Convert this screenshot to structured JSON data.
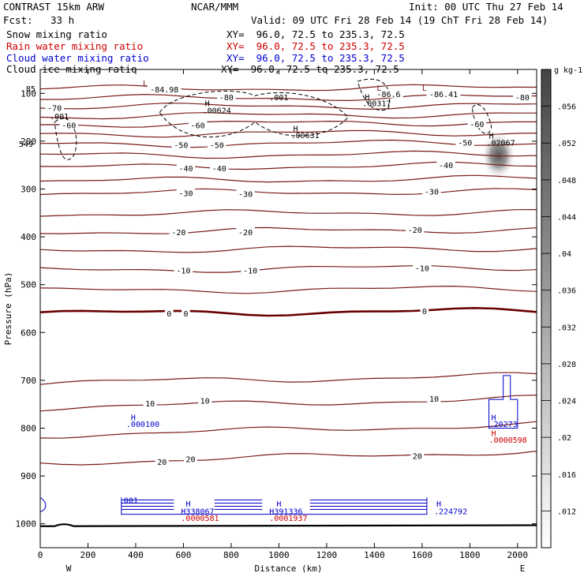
{
  "header": {
    "model": "CONTRAST 15km ARW",
    "org": "NCAR/MMM",
    "init": "Init: 00 UTC Thu 27 Feb 14",
    "fcst_label": "Fcst:",
    "fcst_value": "33 h",
    "valid": "Valid: 09 UTC Fri 28 Feb 14 (19 ChT Fri 28 Feb 14)"
  },
  "legend": [
    {
      "name": "Snow mixing ratio",
      "xy": "XY=  96.0, 72.5 to 235.3, 72.5",
      "color": "#000000"
    },
    {
      "name": "Rain water mixing ratio",
      "xy": "XY=  96.0, 72.5 to 235.3, 72.5",
      "color": "#cc0000"
    },
    {
      "name": "Cloud water mixing ratio",
      "xy": "XY=  96.0, 72.5 to 235.3, 72.5",
      "color": "#0000cc"
    },
    {
      "name": "Cloud ice mixing ratio",
      "xy": "XY=  96.0, 72.5 to 235.3, 72.5",
      "color": "#000000"
    }
  ],
  "chart_data": {
    "type": "contour",
    "xlabel": "Distance (km)",
    "ylabel": "Pressure (hPa)",
    "xlim": [
      0,
      2080
    ],
    "ylim": [
      1050,
      50
    ],
    "x_ticks": [
      0,
      200,
      400,
      600,
      800,
      1000,
      1200,
      1400,
      1600,
      1800,
      2000
    ],
    "y_ticks": [
      100,
      200,
      300,
      400,
      500,
      600,
      700,
      800,
      900,
      1000
    ],
    "x_end_labels": {
      "left": "W",
      "right": "E"
    },
    "temperature_contours": {
      "color": "#7a1a1a",
      "zero_color": "#6a0000",
      "interval": 5,
      "lines": [
        {
          "value": 20,
          "p_left": 873,
          "p_right": 848
        },
        {
          "value": 15,
          "p_left": 815,
          "p_right": 792
        },
        {
          "value": 10,
          "p_left": 757,
          "p_right": 738
        },
        {
          "value": 5,
          "p_left": 705,
          "p_right": 690
        },
        {
          "value": 0,
          "p_left": 560,
          "p_right": 555
        },
        {
          "value": -5,
          "p_left": 513,
          "p_right": 508
        },
        {
          "value": -10,
          "p_left": 470,
          "p_right": 463
        },
        {
          "value": -15,
          "p_left": 428,
          "p_right": 423
        },
        {
          "value": -20,
          "p_left": 390,
          "p_right": 384
        },
        {
          "value": -25,
          "p_left": 352,
          "p_right": 348
        },
        {
          "value": -30,
          "p_left": 308,
          "p_right": 305
        },
        {
          "value": -35,
          "p_left": 283,
          "p_right": 278
        },
        {
          "value": -40,
          "p_left": 255,
          "p_right": 250
        },
        {
          "value": -45,
          "p_left": 230,
          "p_right": 227
        },
        {
          "value": -50,
          "p_left": 207,
          "p_right": 203
        },
        {
          "value": -55,
          "p_left": 185,
          "p_right": 182
        },
        {
          "value": -60,
          "p_left": 165,
          "p_right": 160
        },
        {
          "value": -65,
          "p_left": 148,
          "p_right": 143
        },
        {
          "value": -70,
          "p_left": 128,
          "p_right": 125
        },
        {
          "value": -75,
          "p_left": 110,
          "p_right": 108
        },
        {
          "value": -80,
          "p_left": 90,
          "p_right": 88
        }
      ],
      "labels": [
        {
          "text": "-84.98",
          "x": 520,
          "p": 91
        },
        {
          "text": "-86.6",
          "x": 1460,
          "p": 101
        },
        {
          "text": "-86.41",
          "x": 1690,
          "p": 101
        },
        {
          "text": "-80",
          "x": 780,
          "p": 108
        },
        {
          "text": "-80",
          "x": 2020,
          "p": 108
        },
        {
          "text": "-70",
          "x": 60,
          "p": 130
        },
        {
          "text": "-60",
          "x": 120,
          "p": 166
        },
        {
          "text": "-60",
          "x": 660,
          "p": 166
        },
        {
          "text": "-60",
          "x": 1830,
          "p": 164
        },
        {
          "text": "-50",
          "x": 590,
          "p": 208
        },
        {
          "text": "-50",
          "x": 740,
          "p": 208
        },
        {
          "text": "-50",
          "x": 1780,
          "p": 203
        },
        {
          "text": "-40",
          "x": 610,
          "p": 256
        },
        {
          "text": "-40",
          "x": 750,
          "p": 256
        },
        {
          "text": "-40",
          "x": 1700,
          "p": 250
        },
        {
          "text": "-30",
          "x": 610,
          "p": 308
        },
        {
          "text": "-30",
          "x": 860,
          "p": 310
        },
        {
          "text": "-30",
          "x": 1640,
          "p": 305
        },
        {
          "text": "-20",
          "x": 580,
          "p": 390
        },
        {
          "text": "-20",
          "x": 860,
          "p": 390
        },
        {
          "text": "-20",
          "x": 1570,
          "p": 385
        },
        {
          "text": "-10",
          "x": 600,
          "p": 470
        },
        {
          "text": "-10",
          "x": 880,
          "p": 470
        },
        {
          "text": "-10",
          "x": 1600,
          "p": 465
        },
        {
          "text": "0",
          "x": 540,
          "p": 560
        },
        {
          "text": "0",
          "x": 610,
          "p": 560
        },
        {
          "text": "0",
          "x": 1610,
          "p": 555
        },
        {
          "text": "10",
          "x": 460,
          "p": 748
        },
        {
          "text": "10",
          "x": 690,
          "p": 742
        },
        {
          "text": "10",
          "x": 1650,
          "p": 738
        },
        {
          "text": "20",
          "x": 510,
          "p": 870
        },
        {
          "text": "20",
          "x": 630,
          "p": 864
        },
        {
          "text": "20",
          "x": 1580,
          "p": 858
        },
        {
          "text": "549",
          "x": -60,
          "p": 205
        },
        {
          "text": "85",
          "x": -40,
          "p": 90
        }
      ]
    },
    "annotations": [
      {
        "text": "L",
        "x": 430,
        "p": 78,
        "color": "#7a1a1a"
      },
      {
        "text": "L",
        "x": 1410,
        "p": 88,
        "color": "#7a1a1a"
      },
      {
        "text": "L",
        "x": 1600,
        "p": 88,
        "color": "#7a1a1a"
      },
      {
        "text": "H",
        "x": 690,
        "p": 120,
        "color": "#000000"
      },
      {
        "text": ".00624",
        "x": 680,
        "p": 135,
        "color": "#000000"
      },
      {
        "text": ".001",
        "x": 960,
        "p": 108,
        "color": "#000000"
      },
      {
        "text": "H",
        "x": 1360,
        "p": 107,
        "color": "#000000"
      },
      {
        "text": ".00317",
        "x": 1350,
        "p": 120,
        "color": "#000000"
      },
      {
        "text": "H",
        "x": 1060,
        "p": 173,
        "color": "#000000"
      },
      {
        "text": ".00631",
        "x": 1050,
        "p": 187,
        "color": "#000000"
      },
      {
        "text": ".001",
        "x": 40,
        "p": 147,
        "color": "#000000"
      },
      {
        "text": "H",
        "x": 1880,
        "p": 188,
        "color": "#000000"
      },
      {
        "text": ".02067",
        "x": 1870,
        "p": 203,
        "color": "#000000"
      },
      {
        "text": "H",
        "x": 380,
        "p": 777,
        "color": "#0000cc"
      },
      {
        "text": ".000100",
        "x": 360,
        "p": 791,
        "color": "#0000cc"
      },
      {
        "text": "H",
        "x": 1890,
        "p": 777,
        "color": "#0000cc"
      },
      {
        "text": ".20273",
        "x": 1880,
        "p": 791,
        "color": "#0000cc"
      },
      {
        "text": "H",
        "x": 1890,
        "p": 810,
        "color": "#cc0000"
      },
      {
        "text": ".0000598",
        "x": 1880,
        "p": 824,
        "color": "#cc0000"
      },
      {
        "text": ".001",
        "x": 330,
        "p": 950,
        "color": "#0000cc"
      },
      {
        "text": "H",
        "x": 610,
        "p": 958,
        "color": "#0000cc"
      },
      {
        "text": "H338067",
        "x": 590,
        "p": 973,
        "color": "#0000cc"
      },
      {
        "text": ".0000581",
        "x": 590,
        "p": 987,
        "color": "#cc0000"
      },
      {
        "text": "H",
        "x": 990,
        "p": 958,
        "color": "#0000cc"
      },
      {
        "text": "H391336",
        "x": 960,
        "p": 973,
        "color": "#0000cc"
      },
      {
        "text": ".0001937",
        "x": 960,
        "p": 987,
        "color": "#cc0000"
      },
      {
        "text": "H",
        "x": 1660,
        "p": 958,
        "color": "#0000cc"
      },
      {
        "text": ".224792",
        "x": 1650,
        "p": 973,
        "color": "#0000cc"
      }
    ],
    "snow_shading": {
      "center_x": 1920,
      "center_p": 235,
      "max": 0.056,
      "color": "#555555"
    },
    "colorbar": {
      "unit": "g kg-1",
      "ticks": [
        0.012,
        0.016,
        0.02,
        0.024,
        0.028,
        0.032,
        0.036,
        0.04,
        0.044,
        0.048,
        0.052,
        0.056
      ],
      "tick_labels": [
        ".012",
        ".016",
        ".02",
        ".024",
        ".028",
        ".032",
        ".036",
        ".04",
        ".044",
        ".048",
        ".052",
        ".056"
      ],
      "min": 0.008,
      "max": 0.06,
      "color_low": "#ffffff",
      "color_high": "#444444"
    },
    "terrain": {
      "color": "#000000",
      "p_base": 1005,
      "bump_x": 100,
      "bump_p": 997
    }
  }
}
